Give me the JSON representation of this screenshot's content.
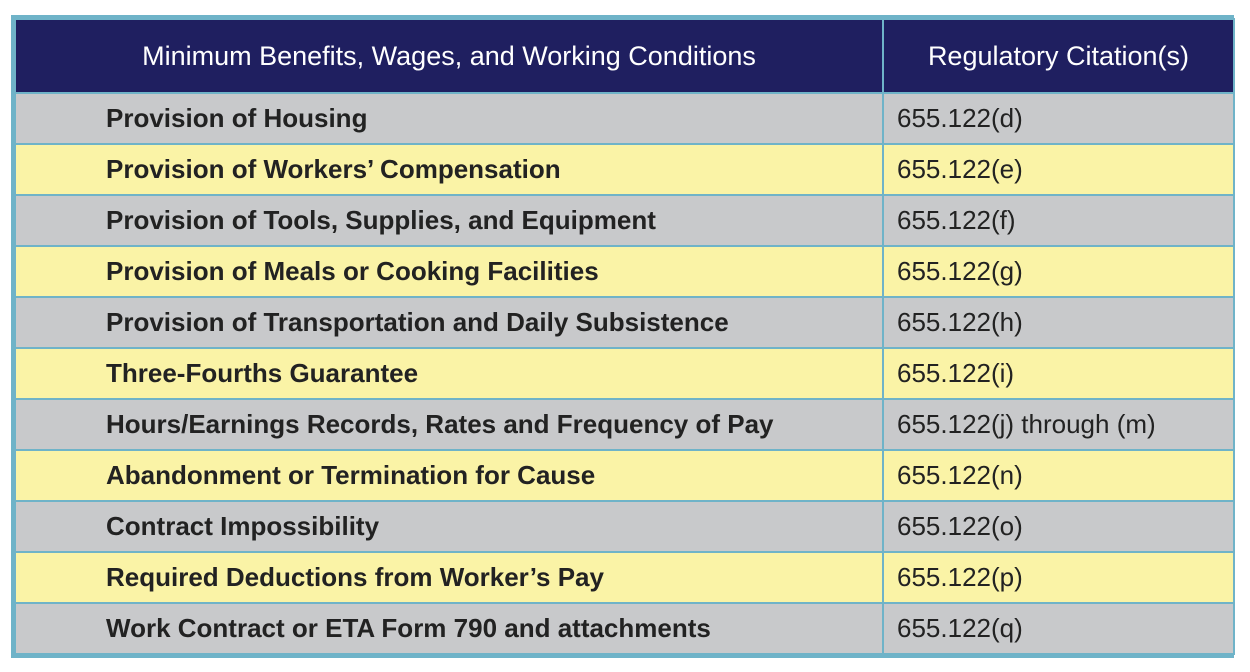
{
  "table": {
    "headers": [
      "Minimum Benefits, Wages, and Working Conditions",
      "Regulatory Citation(s)"
    ],
    "rows": [
      {
        "requirement": "Provision of Housing",
        "citation": "655.122(d)",
        "color": "#c8c9cb"
      },
      {
        "requirement": "Provision of Workers’ Compensation",
        "citation": "655.122(e)",
        "color": "#faf3a6"
      },
      {
        "requirement": "Provision of Tools, Supplies, and Equipment",
        "citation": "655.122(f)",
        "color": "#c8c9cb"
      },
      {
        "requirement": "Provision of Meals or Cooking Facilities",
        "citation": "655.122(g)",
        "color": "#faf3a6"
      },
      {
        "requirement": "Provision of Transportation and Daily Subsistence",
        "citation": "655.122(h)",
        "color": "#c8c9cb"
      },
      {
        "requirement": "Three-Fourths Guarantee",
        "citation": "655.122(i)",
        "color": "#faf3a6"
      },
      {
        "requirement": "Hours/Earnings Records, Rates and Frequency of Pay",
        "citation": "655.122(j) through (m)",
        "color": "#c8c9cb"
      },
      {
        "requirement": "Abandonment or Termination for Cause",
        "citation": "655.122(n)",
        "color": "#faf3a6"
      },
      {
        "requirement": "Contract Impossibility",
        "citation": "655.122(o)",
        "color": "#c8c9cb"
      },
      {
        "requirement": "Required Deductions from Worker’s Pay",
        "citation": "655.122(p)",
        "color": "#faf3a6"
      },
      {
        "requirement": "Work Contract or ETA Form 790 and attachments",
        "citation": "655.122(q)",
        "color": "#c8c9cb"
      }
    ]
  },
  "colors": {
    "header_bg": "#1f1f60",
    "border": "#6fb3c8",
    "row_gray": "#c8c9cb",
    "row_yellow": "#faf3a6"
  }
}
